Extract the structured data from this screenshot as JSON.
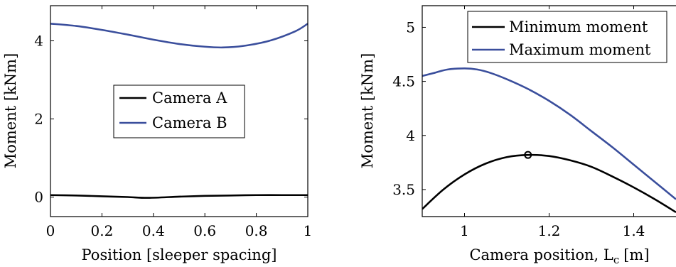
{
  "chart_data": [
    {
      "type": "line",
      "xlabel": "Position [sleeper spacing]",
      "ylabel": "Moment [kNm]",
      "xlim": [
        0,
        1
      ],
      "ylim": [
        -0.5,
        4.9
      ],
      "xticks": [
        0,
        0.2,
        0.4,
        0.6,
        0.8,
        1
      ],
      "xtick_labels": [
        "0",
        "0.2",
        "0.4",
        "0.6",
        "0.8",
        "1"
      ],
      "yticks": [
        0,
        2,
        4
      ],
      "ytick_labels": [
        "0",
        "2",
        "4"
      ],
      "grid": false,
      "legend_position": "center",
      "series": [
        {
          "name": "Camera A",
          "color": "#000000",
          "x": [
            0,
            0.1,
            0.2,
            0.3,
            0.38,
            0.5,
            0.6,
            0.7,
            0.8,
            0.9,
            1.0
          ],
          "y": [
            0.05,
            0.04,
            0.02,
            0.0,
            -0.02,
            0.01,
            0.03,
            0.04,
            0.05,
            0.05,
            0.05
          ]
        },
        {
          "name": "Camera B",
          "color": "#3a4e9c",
          "x": [
            0,
            0.1,
            0.2,
            0.3,
            0.4,
            0.5,
            0.6,
            0.67,
            0.75,
            0.85,
            0.95,
            1.0
          ],
          "y": [
            4.44,
            4.38,
            4.28,
            4.16,
            4.03,
            3.92,
            3.85,
            3.83,
            3.87,
            4.0,
            4.24,
            4.44
          ]
        }
      ]
    },
    {
      "type": "line",
      "xlabel": "Camera position, L",
      "xlabel_sub": "c",
      "xlabel_unit": "[m]",
      "ylabel": "Moment [kNm]",
      "xlim": [
        0.9,
        1.5
      ],
      "ylim": [
        3.25,
        5.2
      ],
      "xticks": [
        1,
        1.2,
        1.4
      ],
      "xtick_labels": [
        "1",
        "1.2",
        "1.4"
      ],
      "yticks": [
        3.5,
        4,
        4.5,
        5
      ],
      "ytick_labels": [
        "3.5",
        "4",
        "4.5",
        "5"
      ],
      "grid": false,
      "legend_position": "top-right",
      "series": [
        {
          "name": "Minimum moment",
          "color": "#000000",
          "x": [
            0.9,
            0.95,
            1.0,
            1.05,
            1.1,
            1.15,
            1.2,
            1.25,
            1.3,
            1.35,
            1.4,
            1.45,
            1.5
          ],
          "y": [
            3.32,
            3.5,
            3.64,
            3.74,
            3.8,
            3.82,
            3.81,
            3.77,
            3.71,
            3.62,
            3.52,
            3.41,
            3.29
          ]
        },
        {
          "name": "Maximum moment",
          "color": "#3a4e9c",
          "x": [
            0.9,
            0.93,
            0.96,
            1.0,
            1.03,
            1.06,
            1.1,
            1.15,
            1.2,
            1.25,
            1.3,
            1.35,
            1.4,
            1.45,
            1.5
          ],
          "y": [
            4.55,
            4.58,
            4.61,
            4.62,
            4.61,
            4.58,
            4.52,
            4.43,
            4.32,
            4.19,
            4.04,
            3.89,
            3.73,
            3.57,
            3.41
          ]
        }
      ],
      "annotations": [
        {
          "type": "marker",
          "shape": "circle",
          "x": 1.15,
          "y": 3.82
        }
      ]
    }
  ]
}
